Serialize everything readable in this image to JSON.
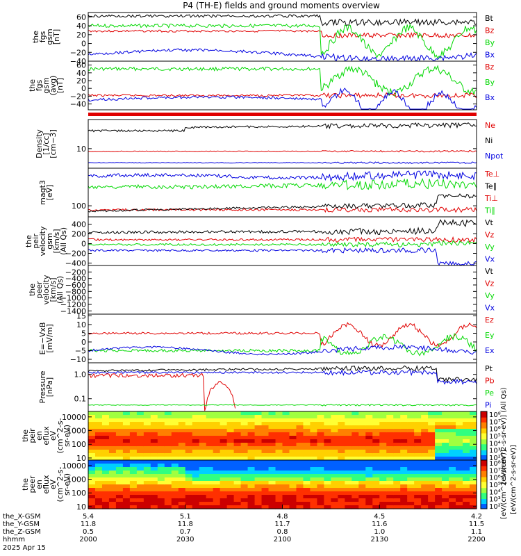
{
  "title": "P4 (TH-E) fields and ground moments overview",
  "colors": {
    "black": "#000000",
    "red": "#e00000",
    "green": "#00d800",
    "blue": "#0000e0"
  },
  "chart_data": [
    {
      "id": "fgs",
      "type": "line",
      "ylabel": [
        "the",
        "fgs",
        "gsm",
        "[nT]"
      ],
      "ylim": [
        -40,
        70
      ],
      "yticks": [
        -40,
        -20,
        0,
        20,
        40,
        60
      ],
      "ytick_labels": [
        "−40",
        "−20",
        "0",
        "20",
        "40",
        "60"
      ],
      "legend": [
        {
          "name": "Bt",
          "color": "black"
        },
        {
          "name": "Bz",
          "color": "red"
        },
        {
          "name": "By",
          "color": "green"
        },
        {
          "name": "Bx",
          "color": "blue"
        }
      ]
    },
    {
      "id": "fgs2",
      "type": "line",
      "ylabel": [
        "the",
        "fgs",
        "gsm",
        "(avg)",
        "[nT]"
      ],
      "ylim": [
        -55,
        70
      ],
      "yticks": [
        -40,
        -20,
        0,
        20,
        40,
        60
      ],
      "ytick_labels": [
        "−40",
        "−20",
        "0",
        "20",
        "40",
        "60"
      ],
      "legend": [
        {
          "name": "Bz",
          "color": "red"
        },
        {
          "name": "By",
          "color": "green"
        },
        {
          "name": "Bx",
          "color": "blue"
        }
      ]
    },
    {
      "id": "density",
      "type": "line",
      "ylabel": [
        "Density",
        "[1/cc]",
        "[cm−3]"
      ],
      "log": true,
      "ylim": [
        3,
        60
      ],
      "yticks": [
        10
      ],
      "ytick_labels": [
        "10"
      ],
      "legend": [
        {
          "name": "Ne",
          "color": "red"
        },
        {
          "name": "Ni",
          "color": "black"
        },
        {
          "name": "Npot",
          "color": "blue"
        }
      ]
    },
    {
      "id": "temp",
      "type": "line",
      "ylabel": [
        "magt3",
        "[eV]"
      ],
      "log": true,
      "ylim": [
        30,
        6000
      ],
      "yticks": [
        100
      ],
      "ytick_labels": [
        "100"
      ],
      "legend": [
        {
          "name": "Te⊥",
          "color": "red"
        },
        {
          "name": "Te∥",
          "color": "black"
        },
        {
          "name": "Ti⊥",
          "color": "red"
        },
        {
          "name": "Ti∥",
          "color": "green"
        }
      ]
    },
    {
      "id": "vpeir",
      "type": "line",
      "ylabel": [
        "the",
        "peir",
        "velocity",
        "gsm",
        "[km/s]",
        "(All Qs)"
      ],
      "ylim": [
        -450,
        550
      ],
      "yticks": [
        -400,
        -200,
        0,
        200,
        400
      ],
      "ytick_labels": [
        "−400",
        "−200",
        "0",
        "200",
        "400"
      ],
      "legend": [
        {
          "name": "Vt",
          "color": "black"
        },
        {
          "name": "Vz",
          "color": "red"
        },
        {
          "name": "Vy",
          "color": "green"
        },
        {
          "name": "Vx",
          "color": "blue"
        }
      ]
    },
    {
      "id": "vpeer",
      "type": "line",
      "ylabel": [
        "the",
        "peer",
        "velocity",
        "[km/s]",
        "(All Qs)"
      ],
      "ylim": [
        -1500,
        0
      ],
      "yticks": [
        -200,
        -400,
        -600,
        -800,
        -1000,
        -1200,
        -1400
      ],
      "ytick_labels": [
        "−200",
        "−400",
        "−600",
        "−800",
        "−1000",
        "−1200",
        "−1400"
      ],
      "legend": [
        {
          "name": "Vt",
          "color": "black"
        },
        {
          "name": "Vz",
          "color": "red"
        },
        {
          "name": "Vy",
          "color": "green"
        },
        {
          "name": "Vx",
          "color": "blue"
        }
      ]
    },
    {
      "id": "efield",
      "type": "line",
      "ylabel": [
        "E=−VxB",
        "[mV/m]"
      ],
      "ylim": [
        -12,
        16
      ],
      "yticks": [
        -10,
        -5,
        0,
        5,
        10,
        15
      ],
      "ytick_labels": [
        "−10",
        "−5",
        "0",
        "5",
        "10",
        "15"
      ],
      "legend": [
        {
          "name": "Ez",
          "color": "red"
        },
        {
          "name": "Ey",
          "color": "green"
        },
        {
          "name": "Ex",
          "color": "blue"
        }
      ]
    },
    {
      "id": "pressure",
      "type": "line",
      "ylabel": [
        "Pressure",
        "[nPa]"
      ],
      "log": true,
      "ylim": [
        0.03,
        3
      ],
      "yticks": [
        0.1,
        1.0
      ],
      "ytick_labels": [
        "0.1",
        "1.0"
      ],
      "legend": [
        {
          "name": "Pt",
          "color": "black"
        },
        {
          "name": "Pb",
          "color": "red"
        },
        {
          "name": "Pe",
          "color": "green"
        },
        {
          "name": "Pi",
          "color": "blue"
        }
      ]
    },
    {
      "id": "peir_spec",
      "type": "heatmap",
      "ylabel": [
        "the",
        "peir",
        "en",
        "eflux",
        "eV",
        "(cm^2-s-",
        "sr-eV)"
      ],
      "log": true,
      "ylim": [
        7,
        25000
      ],
      "yticks": [
        10,
        100,
        1000,
        10000
      ],
      "ytick_labels": [
        "10",
        "100",
        "1000",
        "10000"
      ]
    },
    {
      "id": "peer_spec",
      "type": "heatmap",
      "ylabel": [
        "the",
        "peer",
        "en",
        "eflux",
        "eV",
        "(cm^2-s-",
        "sr-eV)"
      ],
      "log": true,
      "ylim": [
        7,
        25000
      ],
      "yticks": [
        10,
        100,
        1000,
        10000
      ],
      "ytick_labels": [
        "10",
        "100",
        "1000",
        "10000"
      ]
    }
  ],
  "colorbars": [
    {
      "labels": [
        "10⁸",
        "10⁷",
        "10⁶",
        "10⁵",
        "10⁴",
        "10³",
        "10²"
      ],
      "unit": "[eV/(cm^2-s-sr-eV)] (All Qs)"
    },
    {
      "labels": [
        "10⁸",
        "10⁷",
        "10⁶",
        "10⁵",
        "10⁴",
        "10³",
        "10²"
      ],
      "unit": "[eV/(cm^2-s-sr-eV)]"
    }
  ],
  "colorbar_title": "[eV/(cm^2-s-sr-eV)]",
  "xaxis": {
    "rows": [
      {
        "label": "the_X-GSM",
        "values": [
          "5.4",
          "5.1",
          "4.8",
          "4.5",
          "4.2"
        ]
      },
      {
        "label": "the_Y-GSM",
        "values": [
          "11.8",
          "11.8",
          "11.7",
          "11.6",
          "11.5"
        ]
      },
      {
        "label": "the_Z-GSM",
        "values": [
          "0.5",
          "0.7",
          "0.8",
          "1.0",
          "1.1"
        ]
      },
      {
        "label": "hhmm",
        "values": [
          "2000",
          "2030",
          "2100",
          "2130",
          "2200"
        ]
      }
    ],
    "date": "2025 Apr 15"
  }
}
